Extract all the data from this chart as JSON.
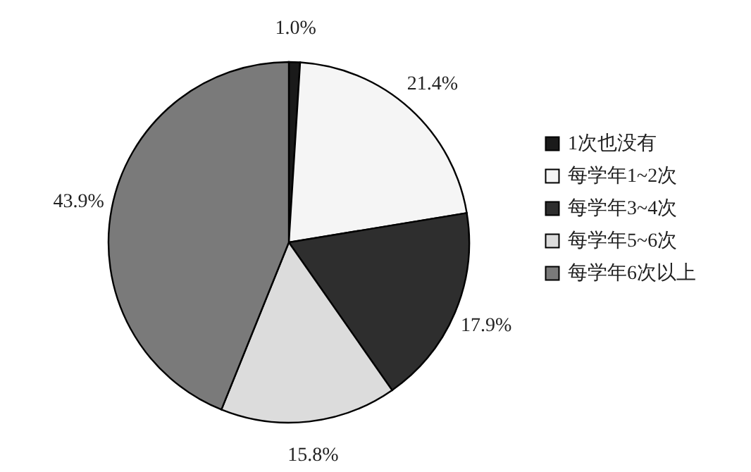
{
  "chart_data": {
    "type": "pie",
    "categories": [
      "1次也没有",
      "每学年1~2次",
      "每学年3~4次",
      "每学年5~6次",
      "每学年6次以上"
    ],
    "values": [
      1.0,
      21.4,
      17.9,
      15.8,
      43.9
    ],
    "value_labels": [
      "1.0%",
      "21.4%",
      "17.9%",
      "15.8%",
      "43.9%"
    ],
    "colors": [
      "#1a1a1a",
      "#f5f5f5",
      "#2e2e2e",
      "#dcdcdc",
      "#7a7a7a"
    ],
    "legend": "right"
  }
}
